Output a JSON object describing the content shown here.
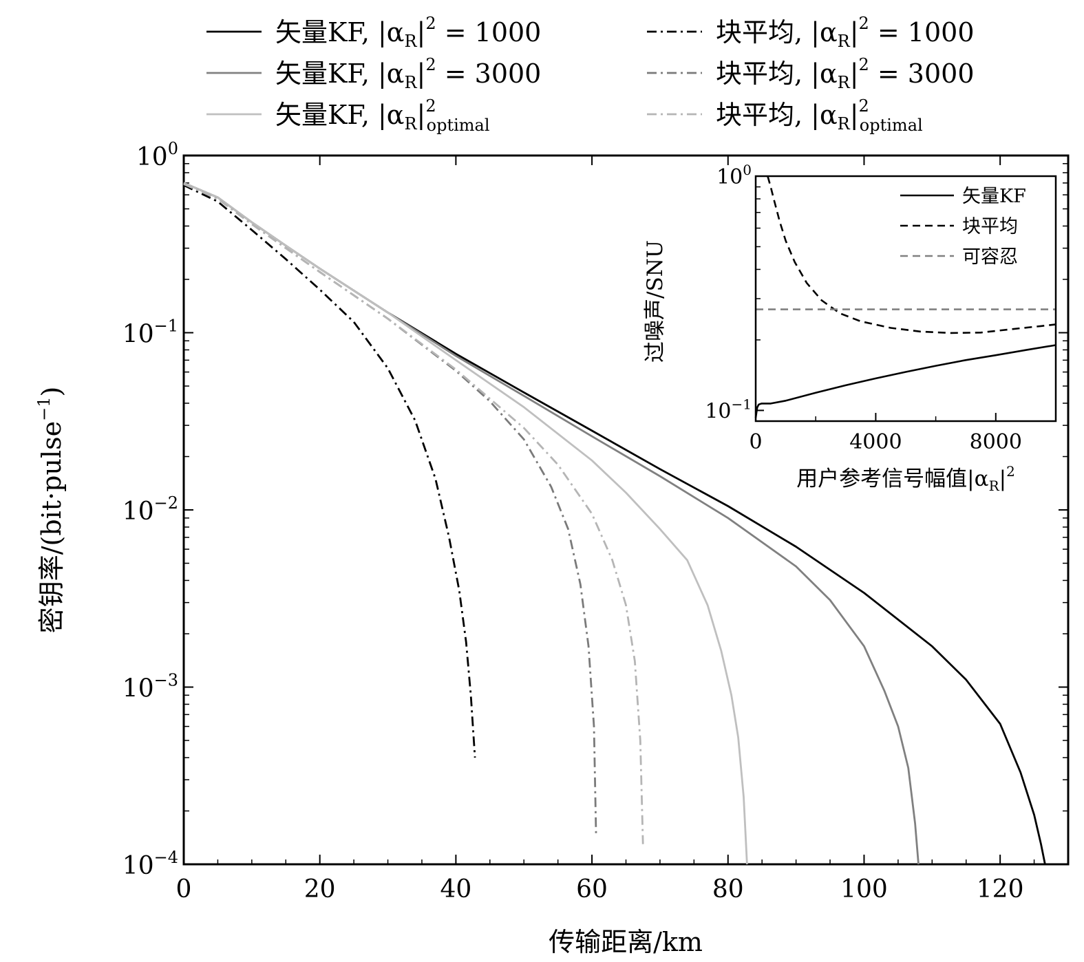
{
  "chart_data": [
    {
      "type": "line",
      "name": "main",
      "xlabel": "传输距离/km",
      "ylabel": "密钥率/(bit·pulse",
      "ylabel_exp": "−1",
      "ylabel_close": ")",
      "xscale": "linear",
      "yscale": "log",
      "xlim": [
        0,
        130
      ],
      "ylim": [
        0.0001,
        1
      ],
      "xticks": [
        0,
        20,
        40,
        60,
        80,
        100,
        120
      ],
      "xtick_labels": [
        "0",
        "20",
        "40",
        "60",
        "80",
        "100",
        "120"
      ],
      "yticks": [
        {
          "value": 1,
          "base": "10",
          "exp": "0"
        },
        {
          "value": 0.1,
          "base": "10",
          "exp": "−1"
        },
        {
          "value": 0.01,
          "base": "10",
          "exp": "−2"
        },
        {
          "value": 0.001,
          "base": "10",
          "exp": "−3"
        },
        {
          "value": 0.0001,
          "base": "10",
          "exp": "−4"
        }
      ],
      "legend": {
        "placement": "top, two columns",
        "common": {
          "abs_open": "|α",
          "sub": "R",
          "abs_close": "|",
          "sup": "2",
          "eq": "="
        },
        "entries": [
          {
            "prefix": "矢量KF,",
            "value": "1000",
            "sup": "2",
            "sub2": "",
            "series": 0
          },
          {
            "prefix": "矢量KF,",
            "value": "3000",
            "sup": "2",
            "sub2": "",
            "series": 1
          },
          {
            "prefix": "矢量KF,",
            "value": "",
            "sup": "2",
            "sub2": "optimal",
            "series": 2
          },
          {
            "prefix": "块平均,",
            "value": "1000",
            "sup": "2",
            "sub2": "",
            "series": 3
          },
          {
            "prefix": "块平均,",
            "value": "3000",
            "sup": "2",
            "sub2": "",
            "series": 4
          },
          {
            "prefix": "块平均,",
            "value": "",
            "sup": "2",
            "sub2": "optimal",
            "series": 5
          }
        ]
      },
      "series": [
        {
          "name": "矢量KF, |αR|²=1000",
          "color": "#000000",
          "style": "solid",
          "x": [
            0,
            5,
            10,
            15,
            20,
            30,
            40,
            50,
            60,
            70,
            80,
            90,
            100,
            110,
            115,
            120,
            123,
            125,
            126,
            126.6
          ],
          "y": [
            0.7,
            0.58,
            0.42,
            0.31,
            0.23,
            0.13,
            0.076,
            0.046,
            0.028,
            0.017,
            0.0105,
            0.0062,
            0.0034,
            0.0017,
            0.0011,
            0.00062,
            0.00033,
            0.00019,
            0.00013,
            0.0001
          ]
        },
        {
          "name": "矢量KF, |αR|²=3000",
          "color": "#808080",
          "style": "solid",
          "x": [
            0,
            5,
            10,
            15,
            20,
            30,
            40,
            50,
            60,
            70,
            80,
            90,
            95,
            100,
            103,
            105,
            106.5,
            107.5,
            108
          ],
          "y": [
            0.7,
            0.58,
            0.42,
            0.31,
            0.23,
            0.13,
            0.074,
            0.044,
            0.026,
            0.0155,
            0.009,
            0.0048,
            0.0031,
            0.0017,
            0.00095,
            0.0006,
            0.00035,
            0.00017,
            0.0001
          ]
        },
        {
          "name": "矢量KF, |αR|²optimal",
          "color": "#bfbfbf",
          "style": "solid",
          "x": [
            0,
            5,
            10,
            15,
            20,
            30,
            40,
            50,
            60,
            65,
            70,
            74,
            77,
            79,
            80.5,
            81.5,
            82.3,
            82.8
          ],
          "y": [
            0.7,
            0.58,
            0.42,
            0.31,
            0.23,
            0.13,
            0.07,
            0.038,
            0.019,
            0.0125,
            0.0078,
            0.0052,
            0.0029,
            0.0016,
            0.0009,
            0.00052,
            0.00024,
            0.0001
          ]
        },
        {
          "name": "块平均, |αR|²=1000",
          "color": "#000000",
          "style": "dashdot",
          "x": [
            0,
            5,
            10,
            15,
            20,
            25,
            30,
            34,
            37,
            39,
            40.5,
            41.5,
            42.2,
            42.8
          ],
          "y": [
            0.68,
            0.55,
            0.38,
            0.26,
            0.175,
            0.115,
            0.063,
            0.032,
            0.015,
            0.007,
            0.0035,
            0.0018,
            0.0009,
            0.0004
          ]
        },
        {
          "name": "块平均, |αR|²=3000",
          "color": "#7a7a7a",
          "style": "dashdot",
          "x": [
            0,
            5,
            10,
            15,
            20,
            30,
            40,
            45,
            50,
            54,
            56.5,
            58.3,
            59.5,
            60.3,
            60.6
          ],
          "y": [
            0.69,
            0.57,
            0.41,
            0.3,
            0.22,
            0.12,
            0.061,
            0.041,
            0.025,
            0.0135,
            0.0078,
            0.0038,
            0.0017,
            0.0006,
            0.00015
          ]
        },
        {
          "name": "块平均, |αR|²optimal",
          "color": "#b5b5b5",
          "style": "dashdot",
          "x": [
            0,
            5,
            10,
            15,
            20,
            30,
            40,
            50,
            55,
            60,
            63,
            65,
            66.3,
            67.1,
            67.5
          ],
          "y": [
            0.69,
            0.57,
            0.41,
            0.3,
            0.22,
            0.12,
            0.062,
            0.029,
            0.018,
            0.0095,
            0.0052,
            0.0029,
            0.0014,
            0.0005,
            0.00013
          ]
        }
      ]
    },
    {
      "type": "line",
      "name": "inset",
      "xlabel": "用户参考信号幅值",
      "xlabel_abs": "|α",
      "xlabel_sub": "R",
      "xlabel_close": "|",
      "xlabel_sup": "2",
      "ylabel": "过噪声/SNU",
      "xscale": "linear",
      "yscale": "log",
      "xlim": [
        0,
        10000
      ],
      "ylim": [
        0.09,
        1
      ],
      "xticks": [
        0,
        4000,
        8000
      ],
      "xtick_labels": [
        "0",
        "4000",
        "8000"
      ],
      "yticks": [
        {
          "value": 1,
          "base": "10",
          "exp": "0"
        },
        {
          "value": 0.1,
          "base": "10",
          "exp": "−1"
        }
      ],
      "legend": {
        "placement": "top-right",
        "entries": [
          "矢量KF",
          "块平均",
          "可容忍"
        ]
      },
      "series": [
        {
          "name": "矢量KF",
          "color": "#000000",
          "style": "solid",
          "x": [
            0,
            50,
            100,
            200,
            500,
            1000,
            2000,
            3000,
            4000,
            5000,
            6000,
            7000,
            8000,
            9000,
            10000
          ],
          "y": [
            0.093,
            0.103,
            0.106,
            0.107,
            0.107,
            0.11,
            0.119,
            0.128,
            0.137,
            0.146,
            0.155,
            0.164,
            0.172,
            0.181,
            0.19
          ]
        },
        {
          "name": "块平均",
          "color": "#000000",
          "style": "dashed",
          "x": [
            400,
            500,
            600,
            800,
            1000,
            1300,
            1700,
            2200,
            2800,
            3500,
            4500,
            5500,
            6500,
            7500,
            8500,
            9500,
            10000
          ],
          "y": [
            1.0,
            0.9,
            0.8,
            0.64,
            0.53,
            0.43,
            0.35,
            0.295,
            0.26,
            0.24,
            0.225,
            0.217,
            0.214,
            0.215,
            0.222,
            0.229,
            0.233
          ]
        },
        {
          "name": "可容忍",
          "color": "#808080",
          "style": "dashed",
          "x": [
            0,
            10000
          ],
          "y": [
            0.27,
            0.27
          ]
        }
      ]
    }
  ]
}
